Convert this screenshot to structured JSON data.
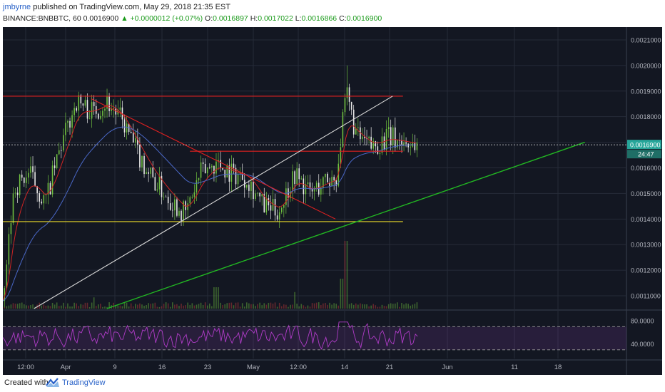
{
  "header": {
    "author": "jmbyrne",
    "published_text": "published on TradingView.com, May 29, 2018 21:35 EST",
    "symbol": "BINANCE:BNBBTC, 60",
    "last": "0.0016900",
    "change": "+0.0000012 (+0.07%)",
    "o_label": "O:",
    "o_value": "0.0016897",
    "h_label": "H:",
    "h_value": "0.0017022",
    "l_label": "L:",
    "l_value": "0.0016866",
    "c_label": "C:",
    "c_value": "0.0016900"
  },
  "footer": {
    "created_with": "Created with",
    "brand": "TradingView",
    "logo_icon": "tradingview-logo-icon"
  },
  "colors": {
    "background": "#131722",
    "grid": "#262b38",
    "candle_up": "#6fbf3f",
    "candle_down": "#e8e8e8",
    "resistance": "#e02020",
    "support": "#e8d82a",
    "trend_white": "#d8d8d8",
    "trend_green": "#22b822",
    "ma_red": "#d02424",
    "ma_blue": "#4a68c8",
    "rsi": "#b03cc8",
    "price_label": "#26a69a"
  },
  "chart_data": {
    "type": "line",
    "x_ticks": [
      "12:00",
      "Apr",
      "9",
      "16",
      "23",
      "May",
      "12:00",
      "14",
      "21",
      "Jun",
      "11",
      "18"
    ],
    "price_ticks": [
      "0.0021000",
      "0.0020000",
      "0.0019000",
      "0.0018000",
      "0.0017000",
      "0.0016000",
      "0.0015000",
      "0.0014000",
      "0.0013000",
      "0.0012000",
      "0.0011000"
    ],
    "ylim": [
      0.00105,
      0.00215
    ],
    "current_price_label": "0.0016900",
    "countdown_label": "24:47",
    "rsi_ticks": [
      "80.0000",
      "40.0000"
    ],
    "rsi_levels": [
      70,
      30
    ],
    "series": [
      {
        "name": "",
        "x": [
          0,
          2,
          5,
          8,
          11,
          14,
          17,
          20,
          23,
          26,
          29,
          32,
          35,
          38,
          41,
          44,
          47,
          50,
          53,
          56,
          59,
          62,
          64,
          66,
          68,
          71,
          74,
          77,
          80
        ],
        "values": [
          0.00108,
          0.00152,
          0.00158,
          0.00146,
          0.00168,
          0.00186,
          0.00182,
          0.00186,
          0.00178,
          0.00165,
          0.00155,
          0.00148,
          0.00142,
          0.00158,
          0.00162,
          0.00158,
          0.00156,
          0.00145,
          0.00143,
          0.00158,
          0.0015,
          0.00155,
          0.00156,
          0.00189,
          0.00172,
          0.00168,
          0.00172,
          0.0017,
          0.00169
        ]
      }
    ],
    "trendlines": [
      {
        "name": "",
        "x": [
          0,
          77
        ],
        "y": [
          0.00188,
          0.00188
        ]
      },
      {
        "name": "",
        "x": [
          36,
          77
        ],
        "y": [
          0.001665,
          0.001665
        ]
      },
      {
        "name": "",
        "x": [
          0,
          77
        ],
        "y": [
          0.00139,
          0.00139
        ]
      },
      {
        "name": "",
        "x": [
          17,
          64
        ],
        "y": [
          0.00187,
          0.0014
        ]
      },
      {
        "name": "",
        "x": [
          6,
          75
        ],
        "y": [
          0.00105,
          0.00188
        ]
      },
      {
        "name": "",
        "x": [
          20,
          112
        ],
        "y": [
          0.00105,
          0.0017
        ]
      }
    ]
  }
}
